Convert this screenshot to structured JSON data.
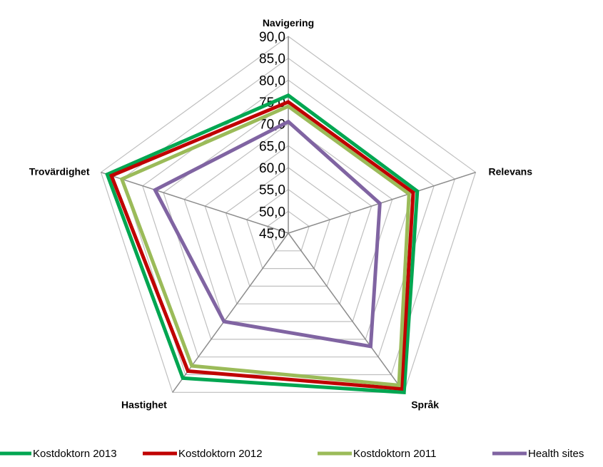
{
  "chart_data": {
    "type": "radar",
    "axes": [
      "Navigering",
      "Relevans",
      "Språk",
      "Hastighet",
      "Trovärdighet"
    ],
    "ticks": [
      "45,0",
      "50,0",
      "55,0",
      "60,0",
      "65,0",
      "70,0",
      "75,0",
      "80,0",
      "85,0",
      "90,0"
    ],
    "range": [
      45,
      90
    ],
    "grid": true,
    "legend_position": "bottom",
    "series": [
      {
        "name": "Kostdoktorn 2013",
        "color": "#00a651",
        "values": [
          76.5,
          76.0,
          90.0,
          86.0,
          88.5
        ]
      },
      {
        "name": "Kostdoktorn 2012",
        "color": "#c00000",
        "values": [
          75.0,
          75.0,
          89.0,
          84.0,
          87.5
        ]
      },
      {
        "name": "Kostdoktorn 2011",
        "color": "#9bbb59",
        "values": [
          74.0,
          74.0,
          88.0,
          82.5,
          85.0
        ]
      },
      {
        "name": "Health sites",
        "color": "#8064a2",
        "values": [
          70.5,
          67.0,
          77.0,
          70.0,
          77.0
        ]
      }
    ]
  }
}
